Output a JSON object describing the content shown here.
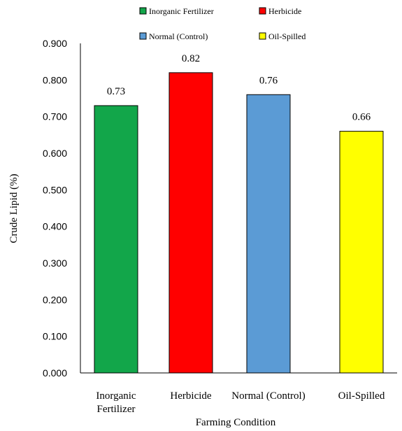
{
  "chart_data": {
    "type": "bar",
    "categories": [
      "Inorganic Fertilizer",
      "Herbicide",
      "Normal (Control)",
      "Oil-Spilled"
    ],
    "category_tick_lines": [
      [
        "Inorganic",
        "Fertilizer"
      ],
      [
        "Herbicide"
      ],
      [
        "Normal (Control)"
      ],
      [
        "Oil-Spilled"
      ]
    ],
    "values": [
      0.73,
      0.82,
      0.76,
      0.66
    ],
    "data_labels": [
      "0.73",
      "0.82",
      "0.76",
      "0.66"
    ],
    "colors": [
      "#12a64a",
      "#ff0000",
      "#5b9bd5",
      "#ffff00"
    ],
    "bar_outline_color": "#000000",
    "xlabel": "Farming Condition",
    "ylabel": "Crude Lipid (%)",
    "ylim": [
      0,
      0.9
    ],
    "yticks": [
      "0.000",
      "0.100",
      "0.200",
      "0.300",
      "0.400",
      "0.500",
      "0.600",
      "0.700",
      "0.800",
      "0.900"
    ],
    "grid": false,
    "legend": {
      "position": "top",
      "entries": [
        "Inorganic Fertilizer",
        "Herbicide",
        "Normal (Control)",
        "Oil-Spilled"
      ]
    }
  }
}
